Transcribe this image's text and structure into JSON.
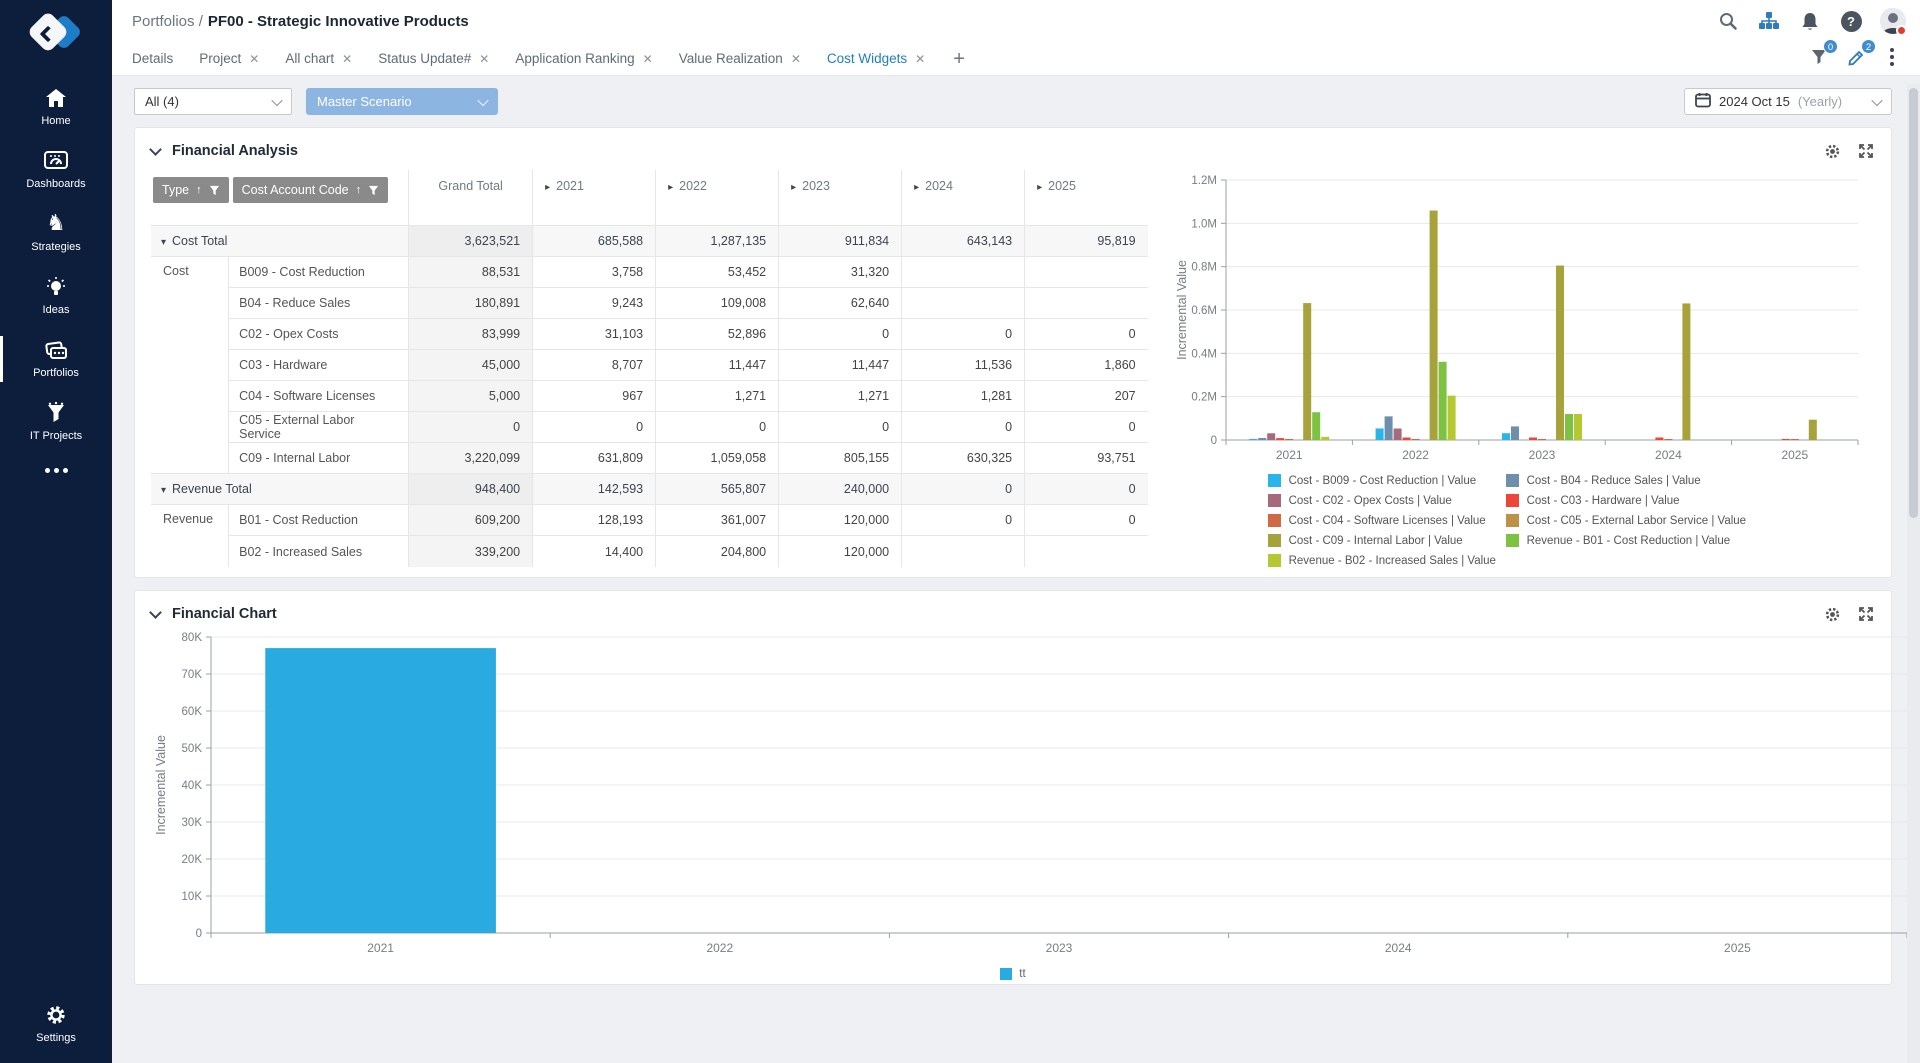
{
  "sidebar": {
    "items": [
      {
        "label": "Home"
      },
      {
        "label": "Dashboards"
      },
      {
        "label": "Strategies"
      },
      {
        "label": "Ideas"
      },
      {
        "label": "Portfolios",
        "active": true
      },
      {
        "label": "IT Projects"
      }
    ],
    "settings_label": "Settings"
  },
  "header": {
    "breadcrumb": "Portfolios /",
    "title": "PF00 - Strategic Innovative Products"
  },
  "tabs": [
    {
      "label": "Details"
    },
    {
      "label": "Project"
    },
    {
      "label": "All chart"
    },
    {
      "label": "Status Update#"
    },
    {
      "label": "Application Ranking"
    },
    {
      "label": "Value Realization"
    },
    {
      "label": "Cost Widgets"
    }
  ],
  "badges": {
    "filter_count": "0",
    "edit_count": "2"
  },
  "toolbar": {
    "collection_filter": "All (4)",
    "scenario": "Master Scenario",
    "date": "2024 Oct 15",
    "date_mode": "(Yearly)"
  },
  "financial_analysis": {
    "title": "Financial Analysis",
    "table": {
      "type_header": "Type",
      "code_header": "Cost Account Code",
      "grand_total_header": "Grand Total",
      "years": [
        "2021",
        "2022",
        "2023",
        "2024",
        "2025"
      ],
      "cost_total": {
        "label": "Cost Total",
        "grand": "3,623,521",
        "values": [
          "685,588",
          "1,287,135",
          "911,834",
          "643,143",
          "95,819"
        ]
      },
      "cost_type_label": "Cost",
      "cost_rows": [
        {
          "code": "B009 - Cost Reduction",
          "grand": "88,531",
          "values": [
            "3,758",
            "53,452",
            "31,320",
            "",
            ""
          ]
        },
        {
          "code": "B04 - Reduce Sales",
          "grand": "180,891",
          "values": [
            "9,243",
            "109,008",
            "62,640",
            "",
            ""
          ]
        },
        {
          "code": "C02 - Opex Costs",
          "grand": "83,999",
          "values": [
            "31,103",
            "52,896",
            "0",
            "0",
            "0"
          ]
        },
        {
          "code": "C03 - Hardware",
          "grand": "45,000",
          "values": [
            "8,707",
            "11,447",
            "11,447",
            "11,536",
            "1,860"
          ]
        },
        {
          "code": "C04 - Software Licenses",
          "grand": "5,000",
          "values": [
            "967",
            "1,271",
            "1,271",
            "1,281",
            "207"
          ]
        },
        {
          "code": "C05 - External Labor Service",
          "grand": "0",
          "values": [
            "0",
            "0",
            "0",
            "0",
            "0"
          ]
        },
        {
          "code": "C09 - Internal Labor",
          "grand": "3,220,099",
          "values": [
            "631,809",
            "1,059,058",
            "805,155",
            "630,325",
            "93,751"
          ]
        }
      ],
      "revenue_total": {
        "label": "Revenue Total",
        "grand": "948,400",
        "values": [
          "142,593",
          "565,807",
          "240,000",
          "0",
          "0"
        ]
      },
      "revenue_type_label": "Revenue",
      "revenue_rows": [
        {
          "code": "B01 - Cost Reduction",
          "grand": "609,200",
          "values": [
            "128,193",
            "361,007",
            "120,000",
            "0",
            "0"
          ]
        },
        {
          "code": "B02 - Increased Sales",
          "grand": "339,200",
          "values": [
            "14,400",
            "204,800",
            "120,000",
            "",
            ""
          ]
        }
      ]
    }
  },
  "financial_chart": {
    "title": "Financial Chart"
  },
  "chart_data": [
    {
      "type": "bar",
      "title": "Financial Analysis",
      "categories": [
        "2021",
        "2022",
        "2023",
        "2024",
        "2025"
      ],
      "series": [
        {
          "name": "Cost - B009 - Cost Reduction | Value",
          "color": "#29b5e8",
          "values": [
            3758,
            53452,
            31320,
            0,
            0
          ]
        },
        {
          "name": "Cost - B04 - Reduce Sales | Value",
          "color": "#6d8fac",
          "values": [
            9243,
            109008,
            62640,
            0,
            0
          ]
        },
        {
          "name": "Cost - C02 - Opex Costs | Value",
          "color": "#a56b7c",
          "values": [
            31103,
            52896,
            0,
            0,
            0
          ]
        },
        {
          "name": "Cost - C03 - Hardware | Value",
          "color": "#ef4438",
          "values": [
            8707,
            11447,
            11447,
            11536,
            1860
          ]
        },
        {
          "name": "Cost - C04 - Software Licenses | Value",
          "color": "#d06a45",
          "values": [
            967,
            1271,
            1271,
            1281,
            207
          ]
        },
        {
          "name": "Cost - C05 - External Labor Service | Value",
          "color": "#bd9146",
          "values": [
            0,
            0,
            0,
            0,
            0
          ]
        },
        {
          "name": "Cost - C09 - Internal Labor  | Value",
          "color": "#a8a23b",
          "values": [
            631809,
            1059058,
            805155,
            630325,
            93751
          ]
        },
        {
          "name": "Revenue - B01 - Cost Reduction | Value",
          "color": "#7dc242",
          "values": [
            128193,
            361007,
            120000,
            0,
            0
          ]
        },
        {
          "name": "Revenue - B02 - Increased Sales | Value",
          "color": "#b5c832",
          "values": [
            14400,
            204800,
            120000,
            0,
            0
          ]
        }
      ],
      "xlabel": "",
      "ylabel": "Incremental Value",
      "ylim": [
        0,
        1200000
      ],
      "yticks": [
        "0",
        "0.2M",
        "0.4M",
        "0.6M",
        "0.8M",
        "1.0M",
        "1.2M"
      ],
      "grid": true,
      "legend_position": "bottom"
    },
    {
      "type": "bar",
      "title": "Financial Chart",
      "categories": [
        "2021",
        "2022",
        "2023",
        "2024",
        "2025"
      ],
      "series": [
        {
          "name": "tt",
          "color": "#29abe2",
          "values": [
            77000,
            0,
            0,
            0,
            0
          ]
        }
      ],
      "xlabel": "",
      "ylabel": "Incremental Value",
      "ylim": [
        0,
        80000
      ],
      "yticks": [
        "0",
        "10K",
        "20K",
        "30K",
        "40K",
        "50K",
        "60K",
        "70K",
        "80K"
      ],
      "grid": true,
      "legend_position": "bottom"
    }
  ]
}
